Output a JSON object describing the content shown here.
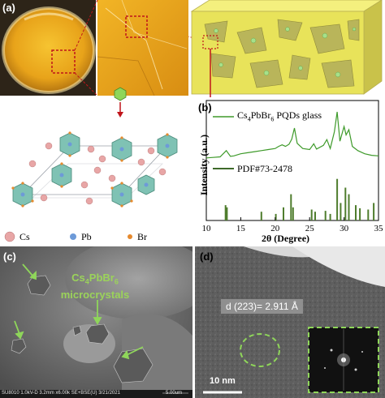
{
  "panels": {
    "a": "(a)",
    "b": "(b)",
    "c": "(c)",
    "d": "(d)"
  },
  "legend": {
    "cs": "Cs",
    "pb": "Pb",
    "br": "Br",
    "cs_color": "#e8a6a6",
    "pb_color": "#6d9ad8",
    "br_color": "#e68a2e"
  },
  "chart_data": {
    "type": "line",
    "xlabel": "2θ (Degree)",
    "ylabel": "Intensity (a.u.)",
    "xlim": [
      10,
      35
    ],
    "xticks": [
      10,
      15,
      20,
      25,
      30,
      35
    ],
    "series": [
      {
        "name": "Cs4PbBr6 PQDs glass",
        "x": [
          10,
          11,
          12,
          12.9,
          13.5,
          14,
          15,
          16,
          17,
          18,
          19,
          20,
          20.5,
          21,
          21.5,
          22,
          22.4,
          22.8,
          23.2,
          24,
          25,
          25.6,
          26,
          27,
          27.5,
          28,
          28.6,
          29,
          29.4,
          30,
          30.3,
          30.7,
          31.2,
          32,
          33,
          34,
          35
        ],
        "y": [
          0.8,
          0.9,
          1.0,
          2.2,
          1.1,
          1.2,
          1.6,
          1.8,
          2.0,
          2.2,
          2.4,
          2.6,
          3.0,
          3.3,
          3.0,
          3.4,
          4.4,
          6.5,
          3.6,
          2.6,
          2.4,
          3.5,
          2.5,
          3.2,
          4.3,
          2.6,
          5.8,
          9.6,
          4.0,
          6.8,
          5.2,
          6.2,
          3.0,
          2.2,
          1.6,
          1.3,
          1.2
        ]
      },
      {
        "name": "PDF#73-2478",
        "type": "stick",
        "x": [
          12.8,
          13.0,
          18.0,
          20.1,
          21.2,
          22.3,
          22.6,
          25.3,
          25.8,
          27.3,
          28.0,
          29.0,
          29.5,
          30.2,
          30.7,
          31.7,
          32.3,
          33.5,
          34.3
        ],
        "y": [
          0.35,
          0.3,
          0.2,
          0.15,
          0.3,
          0.6,
          0.3,
          0.25,
          0.2,
          0.22,
          0.15,
          0.95,
          0.4,
          0.75,
          0.6,
          0.35,
          0.28,
          0.25,
          0.4
        ]
      }
    ],
    "legend_placement": "top",
    "grid": false
  },
  "chart_text": {
    "s1_main": "Cs",
    "s1_sub": "4",
    "s1_mid": "PbBr",
    "s1_sub2": "6",
    "s1_end": "  PQDs glass",
    "s2": "PDF#73-2478",
    "ylabel": "Intensity (a.u.)",
    "xlabel": "2θ (Degree)"
  },
  "sem": {
    "line1_main": "Cs",
    "line1_sub": "4",
    "line1_mid": "PbBr",
    "line1_sub2": "6",
    "line2": "microcrystals",
    "bar_info": "SU8010 1.0kV-D 3.2mm x6.00k SE+BSE(U) 3/21/2021",
    "bar_scale": "5.00um"
  },
  "tem": {
    "d_spacing": "d (223)= 2.911 Å",
    "scale": "10 nm"
  }
}
